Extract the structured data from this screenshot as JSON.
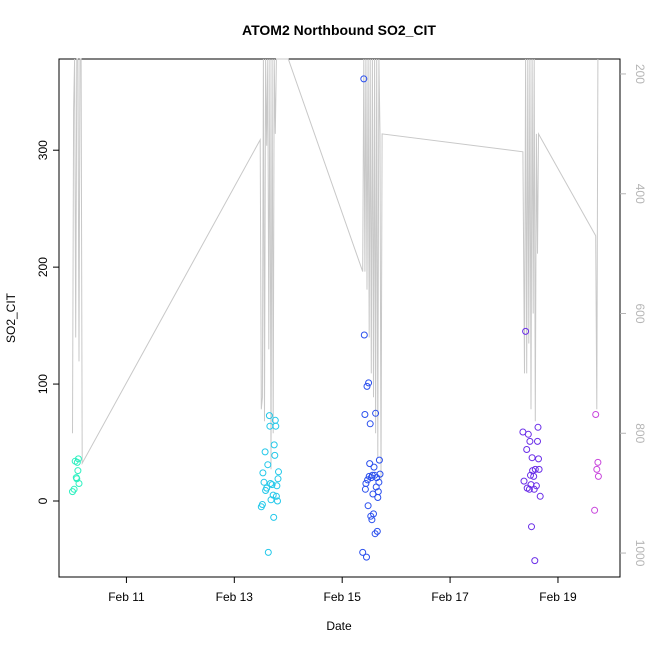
{
  "chart_data": {
    "type": "scatter",
    "title": "ATOM2 Northbound SO2_CIT",
    "xlabel": "Date",
    "ylabel": "SO2_CIT",
    "x_ticks": [
      {
        "label": "Feb 11",
        "day": 11
      },
      {
        "label": "Feb 13",
        "day": 13
      },
      {
        "label": "Feb 15",
        "day": 15
      },
      {
        "label": "Feb 17",
        "day": 17
      },
      {
        "label": "Feb 19",
        "day": 19
      }
    ],
    "xlim": [
      9.75,
      20.15
    ],
    "ylim": [
      -65,
      378
    ],
    "y_ticks": [
      0,
      100,
      200,
      300
    ],
    "y2lim": [
      1040,
      175
    ],
    "y2_ticks": [
      200,
      400,
      600,
      800,
      1000
    ],
    "y2_line_color": "#c8c8c8",
    "series": [
      {
        "color": "#2ef0c0",
        "points": [
          [
            10.0,
            8
          ],
          [
            10.03,
            10
          ],
          [
            10.05,
            34
          ],
          [
            10.07,
            20
          ],
          [
            10.08,
            19
          ],
          [
            10.09,
            33
          ],
          [
            10.1,
            26
          ],
          [
            10.11,
            36
          ],
          [
            10.12,
            15
          ]
        ]
      },
      {
        "color": "#22c8ea",
        "points": [
          [
            13.5,
            -5
          ],
          [
            13.52,
            -3
          ],
          [
            13.53,
            24
          ],
          [
            13.55,
            16
          ],
          [
            13.57,
            42
          ],
          [
            13.58,
            9
          ],
          [
            13.6,
            11
          ],
          [
            13.62,
            31
          ],
          [
            13.63,
            -44
          ],
          [
            13.65,
            73
          ],
          [
            13.66,
            64
          ],
          [
            13.67,
            15
          ],
          [
            13.68,
            1
          ],
          [
            13.7,
            14
          ],
          [
            13.72,
            5
          ],
          [
            13.73,
            -14
          ],
          [
            13.74,
            48
          ],
          [
            13.75,
            39
          ],
          [
            13.76,
            69
          ],
          [
            13.77,
            64
          ],
          [
            13.78,
            4
          ],
          [
            13.79,
            13
          ],
          [
            13.8,
            0
          ],
          [
            13.81,
            19
          ],
          [
            13.82,
            25
          ]
        ]
      },
      {
        "color": "#2a4fee",
        "points": [
          [
            15.38,
            -44
          ],
          [
            15.4,
            361
          ],
          [
            15.41,
            142
          ],
          [
            15.42,
            74
          ],
          [
            15.43,
            10
          ],
          [
            15.44,
            15
          ],
          [
            15.45,
            -48
          ],
          [
            15.46,
            98
          ],
          [
            15.47,
            18
          ],
          [
            15.48,
            -4
          ],
          [
            15.49,
            101
          ],
          [
            15.5,
            21
          ],
          [
            15.51,
            32
          ],
          [
            15.52,
            66
          ],
          [
            15.53,
            -13
          ],
          [
            15.54,
            20
          ],
          [
            15.55,
            -16
          ],
          [
            15.56,
            22
          ],
          [
            15.57,
            6
          ],
          [
            15.58,
            -11
          ],
          [
            15.59,
            29
          ],
          [
            15.6,
            22
          ],
          [
            15.61,
            -28
          ],
          [
            15.62,
            75
          ],
          [
            15.63,
            12
          ],
          [
            15.64,
            20
          ],
          [
            15.65,
            -26
          ],
          [
            15.66,
            3
          ],
          [
            15.67,
            8
          ],
          [
            15.68,
            16
          ],
          [
            15.69,
            35
          ],
          [
            15.7,
            23
          ]
        ]
      },
      {
        "color": "#6a2de8",
        "points": [
          [
            18.35,
            59
          ],
          [
            18.37,
            17
          ],
          [
            18.4,
            145
          ],
          [
            18.42,
            44
          ],
          [
            18.43,
            11
          ],
          [
            18.45,
            57
          ],
          [
            18.47,
            10
          ],
          [
            18.48,
            51
          ],
          [
            18.49,
            22
          ],
          [
            18.5,
            14
          ],
          [
            18.51,
            -22
          ],
          [
            18.52,
            37
          ],
          [
            18.53,
            26
          ],
          [
            18.55,
            21
          ],
          [
            18.56,
            10
          ],
          [
            18.57,
            -51
          ],
          [
            18.58,
            27
          ],
          [
            18.6,
            13
          ],
          [
            18.62,
            51
          ],
          [
            18.63,
            63
          ],
          [
            18.64,
            36
          ],
          [
            18.65,
            27
          ],
          [
            18.67,
            4
          ]
        ]
      },
      {
        "color": "#c845dc",
        "points": [
          [
            19.68,
            -8
          ],
          [
            19.7,
            74
          ],
          [
            19.72,
            27
          ],
          [
            19.74,
            33
          ],
          [
            19.75,
            21
          ]
        ]
      }
    ],
    "y2_line": [
      [
        10.0,
        800
      ],
      [
        10.02,
        260
      ],
      [
        10.04,
        160
      ],
      [
        10.06,
        640
      ],
      [
        10.08,
        175
      ],
      [
        10.1,
        175
      ],
      [
        10.12,
        680
      ],
      [
        10.14,
        175
      ],
      [
        10.16,
        175
      ],
      [
        10.18,
        850
      ],
      [
        13.48,
        310
      ],
      [
        13.5,
        760
      ],
      [
        13.52,
        740
      ],
      [
        13.54,
        120
      ],
      [
        13.56,
        780
      ],
      [
        13.58,
        120
      ],
      [
        13.6,
        320
      ],
      [
        13.62,
        150
      ],
      [
        13.64,
        660
      ],
      [
        13.66,
        120
      ],
      [
        13.68,
        860
      ],
      [
        13.7,
        120
      ],
      [
        13.72,
        800
      ],
      [
        13.74,
        120
      ],
      [
        13.76,
        300
      ],
      [
        13.78,
        120
      ],
      [
        13.8,
        120
      ],
      [
        14.0,
        130
      ],
      [
        15.38,
        530
      ],
      [
        15.4,
        140
      ],
      [
        15.42,
        530
      ],
      [
        15.44,
        140
      ],
      [
        15.46,
        560
      ],
      [
        15.48,
        140
      ],
      [
        15.5,
        640
      ],
      [
        15.52,
        140
      ],
      [
        15.54,
        700
      ],
      [
        15.56,
        140
      ],
      [
        15.58,
        740
      ],
      [
        15.6,
        140
      ],
      [
        15.62,
        800
      ],
      [
        15.64,
        140
      ],
      [
        15.66,
        840
      ],
      [
        15.68,
        140
      ],
      [
        15.7,
        300
      ],
      [
        15.72,
        880
      ],
      [
        15.74,
        300
      ],
      [
        18.35,
        330
      ],
      [
        18.38,
        700
      ],
      [
        18.4,
        120
      ],
      [
        18.42,
        700
      ],
      [
        18.44,
        120
      ],
      [
        18.46,
        650
      ],
      [
        18.48,
        120
      ],
      [
        18.5,
        760
      ],
      [
        18.52,
        120
      ],
      [
        18.54,
        600
      ],
      [
        18.56,
        120
      ],
      [
        18.58,
        780
      ],
      [
        18.6,
        300
      ],
      [
        18.62,
        500
      ],
      [
        18.64,
        300
      ],
      [
        19.7,
        470
      ],
      [
        19.72,
        760
      ],
      [
        19.74,
        120
      ]
    ]
  }
}
